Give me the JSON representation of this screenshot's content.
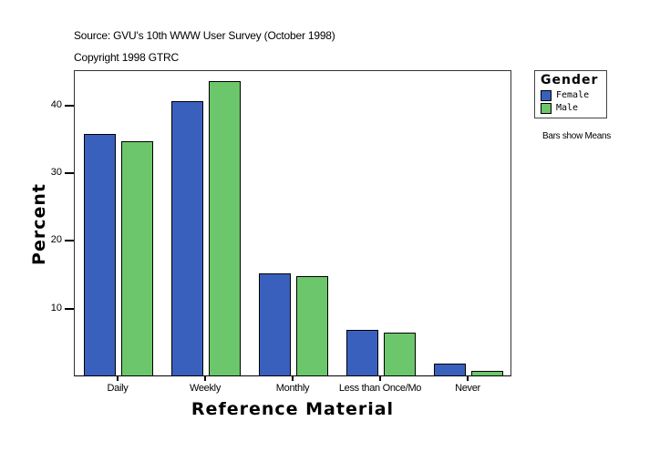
{
  "header": {
    "source": "Source: GVU's 10th WWW User Survey (October 1998)",
    "copyright": "Copyright 1998 GTRC"
  },
  "legend": {
    "title": "Gender",
    "items": [
      {
        "label": "Female",
        "color": "#3A60BE"
      },
      {
        "label": "Male",
        "color": "#6CC76C"
      }
    ]
  },
  "note": "Bars show Means",
  "chart_data": {
    "type": "bar",
    "title": "",
    "xlabel": "Reference Material",
    "ylabel": "Percent",
    "categories": [
      "Daily",
      "Weekly",
      "Monthly",
      "Less than Once/Mo",
      "Never"
    ],
    "series": [
      {
        "name": "Female",
        "color": "#3A60BE",
        "values": [
          35.7,
          40.5,
          15.1,
          6.7,
          1.7
        ]
      },
      {
        "name": "Male",
        "color": "#6CC76C",
        "values": [
          34.6,
          43.5,
          14.7,
          6.3,
          0.7
        ]
      }
    ],
    "yticks": [
      10,
      20,
      30,
      40
    ],
    "ylim": [
      0,
      45.2
    ],
    "grid": false,
    "legend_position": "right"
  }
}
